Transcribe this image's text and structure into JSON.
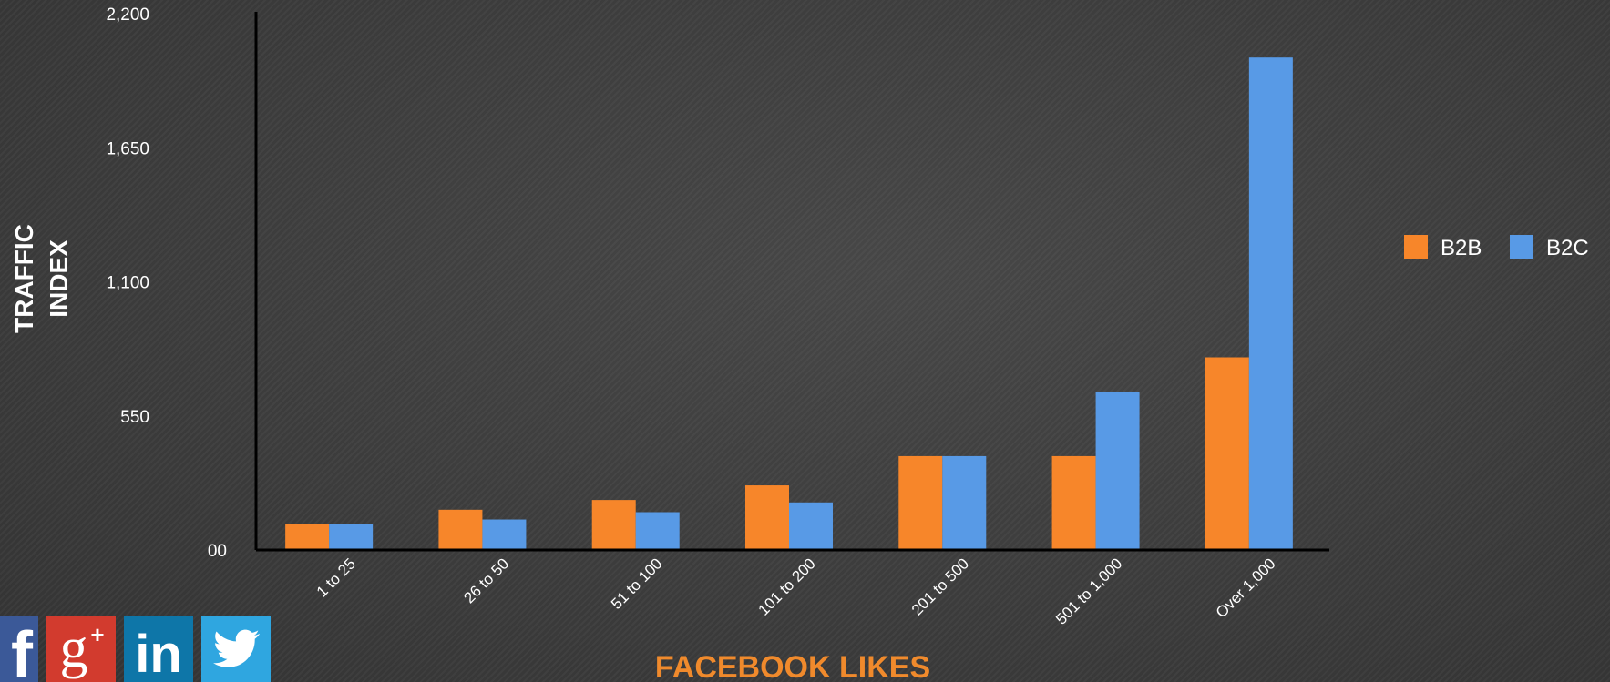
{
  "chart_data": {
    "type": "bar",
    "categories": [
      "1 to 25",
      "26 to 50",
      "51 to 100",
      "101 to 200",
      "201 to 500",
      "501 to 1,000",
      "Over 1,000"
    ],
    "series": [
      {
        "name": "B2B",
        "color": "#f7862a",
        "values": [
          105,
          165,
          205,
          265,
          385,
          385,
          790
        ]
      },
      {
        "name": "B2C",
        "color": "#589ae6",
        "values": [
          105,
          125,
          155,
          195,
          385,
          650,
          2020
        ]
      }
    ],
    "ylim": [
      0,
      2200
    ],
    "yticks": [
      "00",
      "550",
      "1,100",
      "1,650",
      "2,200"
    ],
    "ytick_values": [
      0,
      550,
      1100,
      1650,
      2200
    ],
    "ylabel_lines": [
      "TRAFFIC",
      "INDEX"
    ],
    "xlabel": "FACEBOOK LIKES",
    "legend_position": "right",
    "grid": false
  },
  "social": [
    {
      "name": "facebook-icon",
      "letter": "f"
    },
    {
      "name": "google-plus-icon",
      "letter": "g+"
    },
    {
      "name": "linkedin-icon",
      "letter": "in"
    },
    {
      "name": "twitter-icon",
      "letter": ""
    }
  ]
}
